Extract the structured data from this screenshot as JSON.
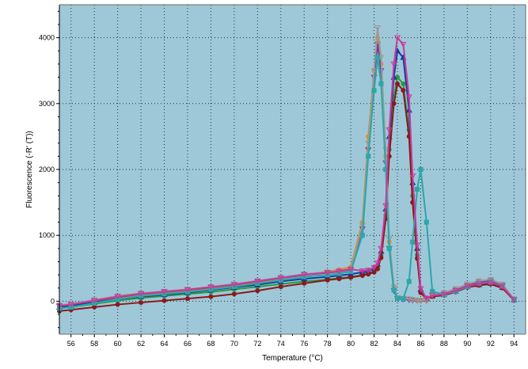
{
  "colors": {
    "plot_background": "#9ec8d8",
    "frame": "#6a6a6a",
    "grid": "#2b2b2b"
  },
  "chart_data": {
    "type": "line",
    "xlabel": "Temperature (°C)",
    "ylabel": "Fluorescence (-R' (T))",
    "xlim": [
      55,
      95
    ],
    "ylim": [
      -500,
      4500
    ],
    "grid": true,
    "x_ticks": [
      "56",
      "58",
      "60",
      "62",
      "64",
      "66",
      "68",
      "70",
      "72",
      "74",
      "76",
      "78",
      "80",
      "82",
      "84",
      "86",
      "88",
      "90",
      "92",
      "94"
    ],
    "y_ticks": [
      "0",
      "1000",
      "2000",
      "3000",
      "4000"
    ],
    "x": [
      55,
      56,
      58,
      60,
      62,
      64,
      66,
      68,
      70,
      72,
      74,
      76,
      78,
      79,
      80,
      81,
      81.5,
      82,
      82.3,
      82.6,
      83,
      83.3,
      83.7,
      84,
      84.5,
      85,
      85.3,
      85.7,
      86,
      86.5,
      87,
      88,
      89,
      90,
      91,
      92,
      93,
      94
    ],
    "series": [
      {
        "color": "#e8891e",
        "marker": "circle",
        "values": [
          -100,
          -80,
          -20,
          40,
          90,
          120,
          150,
          190,
          230,
          290,
          350,
          400,
          450,
          480,
          520,
          1200,
          2500,
          3500,
          4000,
          3600,
          2200,
          900,
          200,
          50,
          40,
          30,
          20,
          10,
          10,
          10,
          100,
          120,
          180,
          250,
          300,
          320,
          250,
          30
        ]
      },
      {
        "color": "#2a9a3a",
        "marker": "circle",
        "values": [
          -100,
          -90,
          -40,
          10,
          50,
          80,
          110,
          140,
          180,
          220,
          260,
          300,
          330,
          350,
          370,
          400,
          420,
          460,
          520,
          700,
          1300,
          2300,
          3100,
          3400,
          3300,
          2600,
          1600,
          700,
          150,
          40,
          90,
          110,
          160,
          230,
          260,
          280,
          220,
          20
        ]
      },
      {
        "color": "#7a3a9a",
        "marker": "triangle-down",
        "values": [
          -80,
          -60,
          0,
          60,
          110,
          140,
          170,
          210,
          250,
          300,
          350,
          400,
          430,
          450,
          480,
          1100,
          2300,
          3400,
          3900,
          3500,
          2100,
          800,
          160,
          40,
          30,
          20,
          15,
          10,
          10,
          10,
          90,
          110,
          170,
          240,
          290,
          310,
          240,
          25
        ]
      },
      {
        "color": "#1a3aa0",
        "marker": "triangle-up",
        "values": [
          -90,
          -70,
          -20,
          30,
          70,
          100,
          130,
          170,
          210,
          250,
          300,
          340,
          370,
          390,
          410,
          440,
          460,
          500,
          560,
          760,
          1400,
          2500,
          3400,
          3800,
          3700,
          2900,
          1800,
          800,
          180,
          40,
          80,
          100,
          150,
          220,
          250,
          270,
          210,
          20
        ]
      },
      {
        "color": "#8a1a1a",
        "marker": "circle",
        "values": [
          -150,
          -130,
          -90,
          -50,
          -20,
          10,
          40,
          70,
          110,
          160,
          220,
          270,
          320,
          340,
          360,
          390,
          410,
          440,
          490,
          660,
          1250,
          2200,
          3000,
          3300,
          3200,
          2500,
          1500,
          650,
          130,
          30,
          70,
          90,
          140,
          210,
          240,
          260,
          200,
          15
        ]
      },
      {
        "color": "#9a9a9a",
        "marker": "triangle-down",
        "values": [
          -60,
          -40,
          20,
          80,
          120,
          150,
          180,
          220,
          260,
          310,
          360,
          410,
          440,
          460,
          490,
          1150,
          2400,
          3500,
          4150,
          3700,
          2300,
          950,
          210,
          55,
          45,
          35,
          25,
          15,
          15,
          15,
          110,
          130,
          190,
          260,
          310,
          330,
          260,
          35
        ]
      },
      {
        "color": "#2aa8a8",
        "marker": "square",
        "values": [
          -110,
          -90,
          -30,
          30,
          80,
          110,
          140,
          180,
          220,
          270,
          320,
          370,
          400,
          420,
          450,
          1000,
          2200,
          3200,
          3700,
          3300,
          2000,
          800,
          170,
          45,
          40,
          300,
          900,
          1700,
          2000,
          1200,
          150,
          100,
          150,
          220,
          270,
          290,
          230,
          25
        ]
      },
      {
        "color": "#c83a9a",
        "marker": "triangle-down",
        "values": [
          -70,
          -50,
          10,
          70,
          115,
          145,
          175,
          215,
          255,
          305,
          355,
          405,
          435,
          455,
          485,
          460,
          470,
          510,
          580,
          800,
          1450,
          2600,
          3600,
          4000,
          3900,
          3100,
          1900,
          850,
          190,
          45,
          85,
          105,
          160,
          230,
          265,
          285,
          225,
          20
        ]
      }
    ]
  }
}
